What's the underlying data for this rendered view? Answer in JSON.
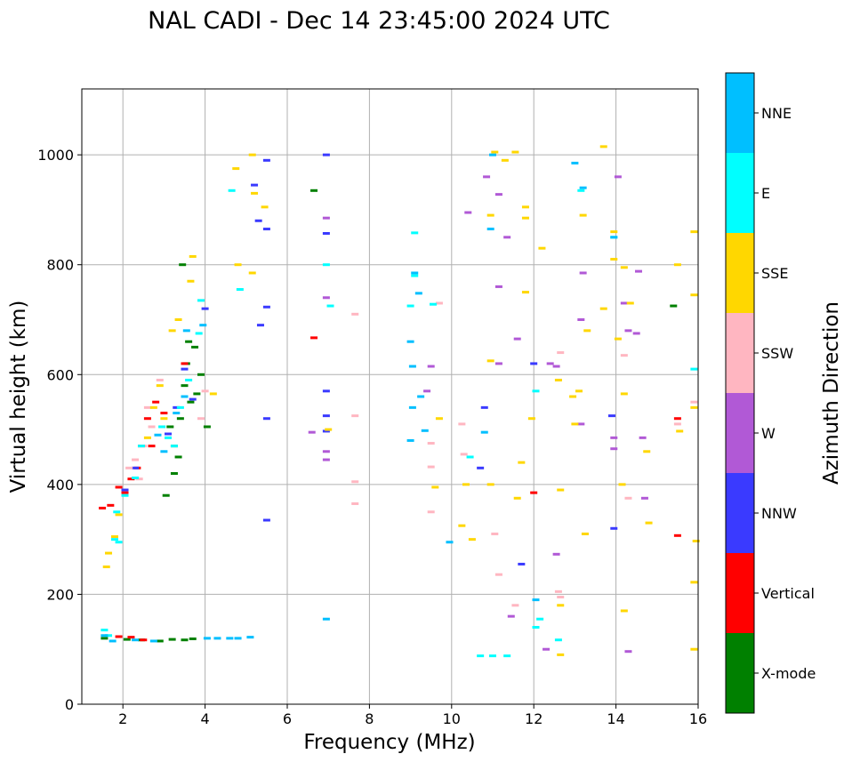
{
  "chart_data": {
    "type": "scatter",
    "title": "NAL CADI - Dec 14 23:45:00 2024 UTC",
    "xlabel": "Frequency (MHz)",
    "ylabel": "Virtual height (km)",
    "xlim": [
      1,
      16
    ],
    "ylim": [
      0,
      1120
    ],
    "xticks": [
      2,
      4,
      6,
      8,
      10,
      12,
      14,
      16
    ],
    "yticks": [
      0,
      200,
      400,
      600,
      800,
      1000
    ],
    "grid": true,
    "colorbar": {
      "label": "Azimuth Direction",
      "categories": [
        {
          "name": "X-mode",
          "color": "#008000"
        },
        {
          "name": "Vertical",
          "color": "#ff0000"
        },
        {
          "name": "NNW",
          "color": "#3a3aff"
        },
        {
          "name": "W",
          "color": "#b159d6"
        },
        {
          "name": "SSW",
          "color": "#ffb6c1"
        },
        {
          "name": "SSE",
          "color": "#ffd700"
        },
        {
          "name": "E",
          "color": "#00ffff"
        },
        {
          "name": "NNE",
          "color": "#00bfff"
        }
      ]
    },
    "series": [
      {
        "name": "X-mode",
        "points": [
          [
            1.55,
            120
          ],
          [
            2.1,
            118
          ],
          [
            2.45,
            117
          ],
          [
            2.9,
            115
          ],
          [
            3.2,
            118
          ],
          [
            3.5,
            117
          ],
          [
            3.7,
            119
          ],
          [
            3.05,
            380
          ],
          [
            3.25,
            470
          ],
          [
            3.4,
            520
          ],
          [
            3.5,
            580
          ],
          [
            3.55,
            620
          ],
          [
            3.6,
            660
          ],
          [
            3.75,
            650
          ],
          [
            3.45,
            800
          ],
          [
            3.25,
            420
          ],
          [
            3.65,
            550
          ],
          [
            4.05,
            505
          ],
          [
            3.9,
            600
          ],
          [
            6.65,
            935
          ],
          [
            15.4,
            725
          ],
          [
            3.15,
            505
          ],
          [
            3.35,
            450
          ],
          [
            3.8,
            565
          ]
        ]
      },
      {
        "name": "Vertical",
        "points": [
          [
            1.5,
            357
          ],
          [
            1.7,
            362
          ],
          [
            1.9,
            395
          ],
          [
            2.05,
            385
          ],
          [
            2.2,
            410
          ],
          [
            2.35,
            430
          ],
          [
            2.45,
            470
          ],
          [
            2.6,
            520
          ],
          [
            2.8,
            550
          ],
          [
            2.2,
            122
          ],
          [
            2.5,
            117
          ],
          [
            1.9,
            123
          ],
          [
            3.0,
            530
          ],
          [
            3.5,
            620
          ],
          [
            6.65,
            667
          ],
          [
            12.0,
            385
          ],
          [
            15.5,
            307
          ],
          [
            15.5,
            520
          ],
          [
            2.7,
            470
          ]
        ]
      },
      {
        "name": "NNW",
        "points": [
          [
            5.5,
            990
          ],
          [
            5.3,
            880
          ],
          [
            5.2,
            945
          ],
          [
            5.5,
            723
          ],
          [
            5.5,
            520
          ],
          [
            5.5,
            865
          ],
          [
            6.95,
            1000
          ],
          [
            6.95,
            857
          ],
          [
            6.95,
            570
          ],
          [
            6.95,
            525
          ],
          [
            6.95,
            497
          ],
          [
            12.0,
            620
          ],
          [
            11.7,
            255
          ],
          [
            13.9,
            525
          ],
          [
            13.95,
            320
          ],
          [
            10.8,
            540
          ],
          [
            10.7,
            430
          ],
          [
            3.1,
            492
          ],
          [
            3.3,
            540
          ],
          [
            3.5,
            610
          ],
          [
            3.7,
            555
          ],
          [
            4.0,
            720
          ],
          [
            2.05,
            390
          ],
          [
            2.3,
            430
          ],
          [
            5.35,
            690
          ],
          [
            5.5,
            335
          ]
        ]
      },
      {
        "name": "W",
        "points": [
          [
            6.6,
            495
          ],
          [
            6.95,
            460
          ],
          [
            6.95,
            445
          ],
          [
            6.95,
            740
          ],
          [
            6.95,
            885
          ],
          [
            9.4,
            570
          ],
          [
            9.5,
            615
          ],
          [
            11.15,
            620
          ],
          [
            11.15,
            760
          ],
          [
            11.15,
            928
          ],
          [
            10.85,
            960
          ],
          [
            11.35,
            850
          ],
          [
            11.6,
            665
          ],
          [
            12.4,
            620
          ],
          [
            12.55,
            615
          ],
          [
            12.55,
            273
          ],
          [
            13.15,
            700
          ],
          [
            13.15,
            510
          ],
          [
            13.2,
            785
          ],
          [
            13.95,
            485
          ],
          [
            13.95,
            465
          ],
          [
            14.05,
            960
          ],
          [
            14.2,
            730
          ],
          [
            14.3,
            680
          ],
          [
            14.3,
            96
          ],
          [
            14.5,
            675
          ],
          [
            14.55,
            788
          ],
          [
            14.65,
            485
          ],
          [
            14.7,
            375
          ],
          [
            12.3,
            100
          ],
          [
            11.45,
            160
          ],
          [
            10.4,
            895
          ]
        ]
      },
      {
        "name": "SSW",
        "points": [
          [
            2.3,
            445
          ],
          [
            2.5,
            470
          ],
          [
            2.7,
            505
          ],
          [
            2.6,
            540
          ],
          [
            2.9,
            590
          ],
          [
            2.4,
            410
          ],
          [
            2.15,
            430
          ],
          [
            4.0,
            570
          ],
          [
            3.9,
            520
          ],
          [
            7.65,
            710
          ],
          [
            7.65,
            525
          ],
          [
            7.65,
            405
          ],
          [
            7.65,
            365
          ],
          [
            9.5,
            475
          ],
          [
            9.5,
            432
          ],
          [
            9.5,
            350
          ],
          [
            9.7,
            730
          ],
          [
            10.3,
            455
          ],
          [
            10.25,
            510
          ],
          [
            11.05,
            310
          ],
          [
            11.15,
            236
          ],
          [
            11.55,
            180
          ],
          [
            12.6,
            205
          ],
          [
            12.65,
            195
          ],
          [
            12.65,
            640
          ],
          [
            14.2,
            635
          ],
          [
            14.3,
            375
          ],
          [
            15.5,
            510
          ],
          [
            15.9,
            550
          ]
        ]
      },
      {
        "name": "SSE",
        "points": [
          [
            1.6,
            250
          ],
          [
            1.65,
            275
          ],
          [
            1.8,
            305
          ],
          [
            1.9,
            345
          ],
          [
            2.6,
            485
          ],
          [
            2.9,
            580
          ],
          [
            2.75,
            540
          ],
          [
            3.0,
            520
          ],
          [
            3.2,
            680
          ],
          [
            3.35,
            700
          ],
          [
            3.7,
            815
          ],
          [
            3.65,
            770
          ],
          [
            4.2,
            565
          ],
          [
            4.75,
            975
          ],
          [
            5.15,
            1000
          ],
          [
            5.2,
            930
          ],
          [
            5.15,
            785
          ],
          [
            4.8,
            800
          ],
          [
            5.45,
            905
          ],
          [
            7.0,
            500
          ],
          [
            9.6,
            395
          ],
          [
            9.7,
            520
          ],
          [
            10.25,
            325
          ],
          [
            10.35,
            400
          ],
          [
            10.5,
            300
          ],
          [
            10.95,
            890
          ],
          [
            10.95,
            625
          ],
          [
            10.95,
            400
          ],
          [
            11.05,
            1005
          ],
          [
            11.3,
            990
          ],
          [
            11.55,
            1005
          ],
          [
            11.6,
            375
          ],
          [
            11.7,
            440
          ],
          [
            11.8,
            905
          ],
          [
            11.8,
            750
          ],
          [
            11.8,
            885
          ],
          [
            11.95,
            520
          ],
          [
            12.2,
            830
          ],
          [
            12.6,
            590
          ],
          [
            12.65,
            390
          ],
          [
            12.65,
            180
          ],
          [
            12.65,
            90
          ],
          [
            12.95,
            560
          ],
          [
            13.0,
            510
          ],
          [
            13.1,
            570
          ],
          [
            13.2,
            890
          ],
          [
            13.25,
            310
          ],
          [
            13.3,
            680
          ],
          [
            13.7,
            1015
          ],
          [
            13.7,
            720
          ],
          [
            13.95,
            860
          ],
          [
            13.95,
            810
          ],
          [
            14.05,
            665
          ],
          [
            14.15,
            400
          ],
          [
            14.2,
            795
          ],
          [
            14.2,
            565
          ],
          [
            14.2,
            170
          ],
          [
            14.35,
            730
          ],
          [
            14.75,
            460
          ],
          [
            14.8,
            330
          ],
          [
            15.5,
            800
          ],
          [
            15.55,
            497
          ],
          [
            15.9,
            860
          ],
          [
            15.9,
            745
          ],
          [
            15.9,
            540
          ],
          [
            15.95,
            297
          ],
          [
            15.9,
            222
          ],
          [
            15.9,
            100
          ]
        ]
      },
      {
        "name": "E",
        "points": [
          [
            1.55,
            135
          ],
          [
            1.65,
            125
          ],
          [
            1.8,
            300
          ],
          [
            1.85,
            350
          ],
          [
            2.05,
            380
          ],
          [
            2.3,
            412
          ],
          [
            2.45,
            470
          ],
          [
            2.95,
            505
          ],
          [
            3.1,
            485
          ],
          [
            3.25,
            470
          ],
          [
            3.4,
            540
          ],
          [
            3.6,
            590
          ],
          [
            3.85,
            675
          ],
          [
            3.9,
            735
          ],
          [
            4.65,
            935
          ],
          [
            4.85,
            755
          ],
          [
            6.95,
            800
          ],
          [
            7.05,
            725
          ],
          [
            9.0,
            725
          ],
          [
            9.1,
            780
          ],
          [
            9.1,
            858
          ],
          [
            9.55,
            728
          ],
          [
            10.45,
            450
          ],
          [
            10.7,
            88
          ],
          [
            11.0,
            88
          ],
          [
            11.35,
            88
          ],
          [
            12.05,
            570
          ],
          [
            12.05,
            140
          ],
          [
            12.15,
            155
          ],
          [
            12.6,
            117
          ],
          [
            13.15,
            935
          ],
          [
            13.95,
            850
          ],
          [
            15.9,
            610
          ],
          [
            1.9,
            295
          ]
        ]
      },
      {
        "name": "NNE",
        "points": [
          [
            1.55,
            125
          ],
          [
            1.75,
            115
          ],
          [
            2.3,
            117
          ],
          [
            2.75,
            115
          ],
          [
            4.05,
            120
          ],
          [
            4.3,
            120
          ],
          [
            4.6,
            120
          ],
          [
            4.8,
            120
          ],
          [
            5.1,
            122
          ],
          [
            6.95,
            155
          ],
          [
            9.0,
            660
          ],
          [
            9.05,
            615
          ],
          [
            9.1,
            785
          ],
          [
            9.2,
            748
          ],
          [
            9.25,
            560
          ],
          [
            9.05,
            540
          ],
          [
            9.0,
            480
          ],
          [
            9.35,
            498
          ],
          [
            9.95,
            295
          ],
          [
            10.8,
            495
          ],
          [
            10.95,
            865
          ],
          [
            11.0,
            1000
          ],
          [
            12.05,
            190
          ],
          [
            13.0,
            985
          ],
          [
            13.2,
            940
          ],
          [
            13.95,
            850
          ],
          [
            3.3,
            530
          ],
          [
            3.5,
            560
          ],
          [
            3.55,
            680
          ],
          [
            3.0,
            460
          ],
          [
            2.85,
            490
          ],
          [
            3.95,
            690
          ]
        ]
      }
    ]
  }
}
